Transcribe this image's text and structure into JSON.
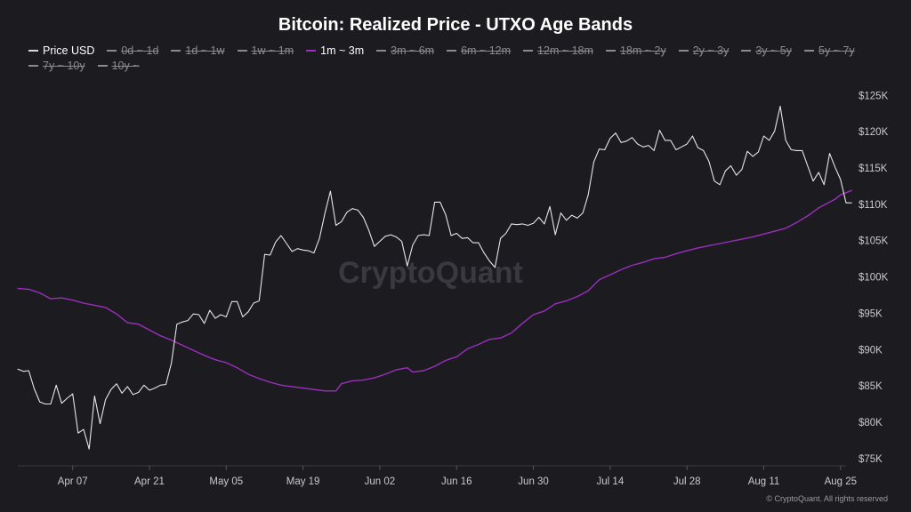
{
  "chart_data": {
    "type": "line",
    "title": "Bitcoin: Realized Price - UTXO Age Bands",
    "watermark": "CryptoQuant",
    "copyright": "© CryptoQuant. All rights reserved",
    "legend": [
      {
        "name": "Price USD",
        "visible": true,
        "color": "#d9d9d9"
      },
      {
        "name": "0d ~ 1d",
        "visible": false,
        "color": "#8a8a8f"
      },
      {
        "name": "1d ~ 1w",
        "visible": false,
        "color": "#8a8a8f"
      },
      {
        "name": "1w ~ 1m",
        "visible": false,
        "color": "#8a8a8f"
      },
      {
        "name": "1m ~ 3m",
        "visible": true,
        "color": "#9b2fbf"
      },
      {
        "name": "3m ~ 6m",
        "visible": false,
        "color": "#8a8a8f"
      },
      {
        "name": "6m ~ 12m",
        "visible": false,
        "color": "#8a8a8f"
      },
      {
        "name": "12m ~ 18m",
        "visible": false,
        "color": "#8a8a8f"
      },
      {
        "name": "18m ~ 2y",
        "visible": false,
        "color": "#8a8a8f"
      },
      {
        "name": "2y ~ 3y",
        "visible": false,
        "color": "#8a8a8f"
      },
      {
        "name": "3y ~ 5y",
        "visible": false,
        "color": "#8a8a8f"
      },
      {
        "name": "5y ~ 7y",
        "visible": false,
        "color": "#8a8a8f"
      },
      {
        "name": "7y ~ 10y",
        "visible": false,
        "color": "#8a8a8f"
      },
      {
        "name": "10y ~",
        "visible": false,
        "color": "#8a8a8f"
      }
    ],
    "x_ticks": [
      {
        "label": "Apr 07",
        "date": "2025-04-07"
      },
      {
        "label": "Apr 21",
        "date": "2025-04-21"
      },
      {
        "label": "May 05",
        "date": "2025-05-05"
      },
      {
        "label": "May 19",
        "date": "2025-05-19"
      },
      {
        "label": "Jun 02",
        "date": "2025-06-02"
      },
      {
        "label": "Jun 16",
        "date": "2025-06-16"
      },
      {
        "label": "Jun 30",
        "date": "2025-06-30"
      },
      {
        "label": "Jul 14",
        "date": "2025-07-14"
      },
      {
        "label": "Jul 28",
        "date": "2025-07-28"
      },
      {
        "label": "Aug 11",
        "date": "2025-08-11"
      },
      {
        "label": "Aug 25",
        "date": "2025-08-25"
      }
    ],
    "y_ticks": [
      {
        "label": "$75K",
        "value": 75000
      },
      {
        "label": "$80K",
        "value": 80000
      },
      {
        "label": "$85K",
        "value": 85000
      },
      {
        "label": "$90K",
        "value": 90000
      },
      {
        "label": "$95K",
        "value": 95000
      },
      {
        "label": "$100K",
        "value": 100000
      },
      {
        "label": "$105K",
        "value": 105000
      },
      {
        "label": "$110K",
        "value": 110000
      },
      {
        "label": "$115K",
        "value": 115000
      },
      {
        "label": "$120K",
        "value": 120000
      },
      {
        "label": "$125K",
        "value": 125000
      }
    ],
    "x_range": [
      "2025-03-28",
      "2025-08-26"
    ],
    "ylim": [
      74000,
      126500
    ],
    "grid": false,
    "legend_position": "top-left",
    "series": [
      {
        "name": "Price USD",
        "color": "#e6e6e6",
        "points": [
          [
            "2025-03-28",
            87300
          ],
          [
            "2025-03-29",
            87000
          ],
          [
            "2025-03-30",
            87100
          ],
          [
            "2025-03-31",
            84600
          ],
          [
            "2025-04-01",
            82800
          ],
          [
            "2025-04-02",
            82500
          ],
          [
            "2025-04-03",
            82500
          ],
          [
            "2025-04-04",
            85100
          ],
          [
            "2025-04-05",
            82600
          ],
          [
            "2025-04-06",
            83300
          ],
          [
            "2025-04-07",
            83900
          ],
          [
            "2025-04-08",
            78500
          ],
          [
            "2025-04-09",
            79000
          ],
          [
            "2025-04-10",
            76300
          ],
          [
            "2025-04-11",
            83600
          ],
          [
            "2025-04-12",
            79800
          ],
          [
            "2025-04-13",
            83100
          ],
          [
            "2025-04-14",
            84500
          ],
          [
            "2025-04-15",
            85300
          ],
          [
            "2025-04-16",
            84000
          ],
          [
            "2025-04-17",
            84900
          ],
          [
            "2025-04-18",
            83800
          ],
          [
            "2025-04-19",
            84100
          ],
          [
            "2025-04-20",
            85100
          ],
          [
            "2025-04-21",
            84400
          ],
          [
            "2025-04-22",
            84700
          ],
          [
            "2025-04-23",
            85100
          ],
          [
            "2025-04-24",
            85200
          ],
          [
            "2025-04-25",
            88100
          ],
          [
            "2025-04-26",
            93500
          ],
          [
            "2025-04-27",
            93800
          ],
          [
            "2025-04-28",
            94000
          ],
          [
            "2025-04-29",
            94900
          ],
          [
            "2025-04-30",
            94800
          ],
          [
            "2025-05-01",
            93600
          ],
          [
            "2025-05-02",
            95400
          ],
          [
            "2025-05-03",
            94300
          ],
          [
            "2025-05-04",
            94800
          ],
          [
            "2025-05-05",
            94500
          ],
          [
            "2025-05-06",
            96600
          ],
          [
            "2025-05-07",
            96600
          ],
          [
            "2025-05-08",
            94500
          ],
          [
            "2025-05-09",
            95200
          ],
          [
            "2025-05-10",
            96400
          ],
          [
            "2025-05-11",
            96700
          ],
          [
            "2025-05-12",
            103100
          ],
          [
            "2025-05-13",
            103000
          ],
          [
            "2025-05-14",
            104800
          ],
          [
            "2025-05-15",
            105700
          ],
          [
            "2025-05-16",
            104600
          ],
          [
            "2025-05-17",
            103500
          ],
          [
            "2025-05-18",
            103900
          ],
          [
            "2025-05-19",
            103700
          ],
          [
            "2025-05-20",
            103600
          ],
          [
            "2025-05-21",
            103300
          ],
          [
            "2025-05-22",
            105300
          ],
          [
            "2025-05-23",
            108800
          ],
          [
            "2025-05-24",
            111800
          ],
          [
            "2025-05-25",
            107100
          ],
          [
            "2025-05-26",
            107600
          ],
          [
            "2025-05-27",
            108900
          ],
          [
            "2025-05-28",
            109400
          ],
          [
            "2025-05-29",
            109200
          ],
          [
            "2025-05-30",
            108200
          ],
          [
            "2025-05-31",
            106400
          ],
          [
            "2025-06-01",
            104200
          ],
          [
            "2025-06-02",
            104900
          ],
          [
            "2025-06-03",
            105600
          ],
          [
            "2025-06-04",
            105800
          ],
          [
            "2025-06-05",
            105500
          ],
          [
            "2025-06-06",
            104900
          ],
          [
            "2025-06-07",
            101500
          ],
          [
            "2025-06-08",
            104400
          ],
          [
            "2025-06-09",
            105700
          ],
          [
            "2025-06-10",
            105800
          ],
          [
            "2025-06-11",
            105700
          ],
          [
            "2025-06-12",
            110300
          ],
          [
            "2025-06-13",
            110300
          ],
          [
            "2025-06-14",
            108600
          ],
          [
            "2025-06-15",
            105700
          ],
          [
            "2025-06-16",
            106000
          ],
          [
            "2025-06-17",
            105300
          ],
          [
            "2025-06-18",
            105400
          ],
          [
            "2025-06-19",
            104700
          ],
          [
            "2025-06-20",
            104700
          ],
          [
            "2025-06-21",
            103300
          ],
          [
            "2025-06-22",
            102200
          ],
          [
            "2025-06-23",
            101300
          ],
          [
            "2025-06-24",
            105300
          ],
          [
            "2025-06-25",
            106000
          ],
          [
            "2025-06-26",
            107300
          ],
          [
            "2025-06-27",
            107200
          ],
          [
            "2025-06-28",
            107300
          ],
          [
            "2025-06-29",
            107100
          ],
          [
            "2025-06-30",
            107400
          ],
          [
            "2025-07-01",
            108200
          ],
          [
            "2025-07-02",
            107300
          ],
          [
            "2025-07-03",
            109700
          ],
          [
            "2025-07-04",
            105800
          ],
          [
            "2025-07-05",
            108800
          ],
          [
            "2025-07-06",
            107800
          ],
          [
            "2025-07-07",
            108500
          ],
          [
            "2025-07-08",
            108100
          ],
          [
            "2025-07-09",
            108800
          ],
          [
            "2025-07-10",
            111300
          ],
          [
            "2025-07-11",
            115800
          ],
          [
            "2025-07-12",
            117600
          ],
          [
            "2025-07-13",
            117500
          ],
          [
            "2025-07-14",
            119100
          ],
          [
            "2025-07-15",
            119800
          ],
          [
            "2025-07-16",
            118500
          ],
          [
            "2025-07-17",
            118700
          ],
          [
            "2025-07-18",
            119200
          ],
          [
            "2025-07-19",
            118300
          ],
          [
            "2025-07-20",
            117900
          ],
          [
            "2025-07-21",
            118100
          ],
          [
            "2025-07-22",
            117400
          ],
          [
            "2025-07-23",
            120200
          ],
          [
            "2025-07-24",
            118800
          ],
          [
            "2025-07-25",
            118800
          ],
          [
            "2025-07-26",
            117500
          ],
          [
            "2025-07-27",
            117900
          ],
          [
            "2025-07-28",
            118300
          ],
          [
            "2025-07-29",
            119400
          ],
          [
            "2025-07-30",
            117800
          ],
          [
            "2025-07-31",
            117400
          ],
          [
            "2025-08-01",
            115900
          ],
          [
            "2025-08-02",
            113200
          ],
          [
            "2025-08-03",
            112700
          ],
          [
            "2025-08-04",
            114600
          ],
          [
            "2025-08-05",
            115300
          ],
          [
            "2025-08-06",
            114000
          ],
          [
            "2025-08-07",
            114800
          ],
          [
            "2025-08-08",
            117300
          ],
          [
            "2025-08-09",
            116600
          ],
          [
            "2025-08-10",
            117200
          ],
          [
            "2025-08-11",
            119400
          ],
          [
            "2025-08-12",
            118800
          ],
          [
            "2025-08-13",
            120100
          ],
          [
            "2025-08-14",
            123500
          ],
          [
            "2025-08-15",
            118800
          ],
          [
            "2025-08-16",
            117500
          ],
          [
            "2025-08-17",
            117400
          ],
          [
            "2025-08-18",
            117400
          ],
          [
            "2025-08-19",
            115300
          ],
          [
            "2025-08-20",
            113200
          ],
          [
            "2025-08-21",
            114400
          ],
          [
            "2025-08-22",
            112700
          ],
          [
            "2025-08-23",
            117000
          ],
          [
            "2025-08-24",
            115100
          ],
          [
            "2025-08-25",
            113400
          ],
          [
            "2025-08-26",
            110200
          ],
          [
            "2025-08-27",
            110200
          ]
        ]
      },
      {
        "name": "1m ~ 3m",
        "color": "#9b2fbf",
        "points": [
          [
            "2025-03-28",
            98400
          ],
          [
            "2025-03-30",
            98300
          ],
          [
            "2025-04-01",
            97800
          ],
          [
            "2025-04-03",
            97000
          ],
          [
            "2025-04-05",
            97100
          ],
          [
            "2025-04-07",
            96800
          ],
          [
            "2025-04-09",
            96400
          ],
          [
            "2025-04-11",
            96100
          ],
          [
            "2025-04-13",
            95800
          ],
          [
            "2025-04-15",
            94900
          ],
          [
            "2025-04-17",
            93700
          ],
          [
            "2025-04-19",
            93500
          ],
          [
            "2025-04-21",
            92700
          ],
          [
            "2025-04-23",
            91900
          ],
          [
            "2025-04-25",
            91300
          ],
          [
            "2025-04-27",
            90600
          ],
          [
            "2025-04-29",
            89900
          ],
          [
            "2025-05-01",
            89200
          ],
          [
            "2025-05-03",
            88600
          ],
          [
            "2025-05-05",
            88200
          ],
          [
            "2025-05-07",
            87500
          ],
          [
            "2025-05-09",
            86600
          ],
          [
            "2025-05-11",
            86000
          ],
          [
            "2025-05-13",
            85500
          ],
          [
            "2025-05-15",
            85100
          ],
          [
            "2025-05-17",
            84900
          ],
          [
            "2025-05-19",
            84700
          ],
          [
            "2025-05-21",
            84500
          ],
          [
            "2025-05-23",
            84300
          ],
          [
            "2025-05-25",
            84300
          ],
          [
            "2025-05-26",
            85300
          ],
          [
            "2025-05-28",
            85700
          ],
          [
            "2025-05-30",
            85800
          ],
          [
            "2025-06-01",
            86100
          ],
          [
            "2025-06-03",
            86600
          ],
          [
            "2025-06-05",
            87200
          ],
          [
            "2025-06-07",
            87500
          ],
          [
            "2025-06-08",
            86900
          ],
          [
            "2025-06-10",
            87100
          ],
          [
            "2025-06-12",
            87700
          ],
          [
            "2025-06-14",
            88500
          ],
          [
            "2025-06-16",
            89000
          ],
          [
            "2025-06-18",
            90100
          ],
          [
            "2025-06-20",
            90700
          ],
          [
            "2025-06-22",
            91400
          ],
          [
            "2025-06-24",
            91600
          ],
          [
            "2025-06-26",
            92300
          ],
          [
            "2025-06-28",
            93600
          ],
          [
            "2025-06-30",
            94800
          ],
          [
            "2025-07-02",
            95300
          ],
          [
            "2025-07-04",
            96300
          ],
          [
            "2025-07-06",
            96700
          ],
          [
            "2025-07-08",
            97300
          ],
          [
            "2025-07-10",
            98100
          ],
          [
            "2025-07-12",
            99600
          ],
          [
            "2025-07-14",
            100300
          ],
          [
            "2025-07-16",
            101000
          ],
          [
            "2025-07-18",
            101600
          ],
          [
            "2025-07-20",
            102000
          ],
          [
            "2025-07-22",
            102500
          ],
          [
            "2025-07-24",
            102700
          ],
          [
            "2025-07-26",
            103200
          ],
          [
            "2025-07-28",
            103600
          ],
          [
            "2025-07-30",
            104000
          ],
          [
            "2025-08-01",
            104300
          ],
          [
            "2025-08-03",
            104600
          ],
          [
            "2025-08-05",
            104900
          ],
          [
            "2025-08-07",
            105200
          ],
          [
            "2025-08-09",
            105500
          ],
          [
            "2025-08-11",
            105900
          ],
          [
            "2025-08-13",
            106300
          ],
          [
            "2025-08-15",
            106700
          ],
          [
            "2025-08-17",
            107500
          ],
          [
            "2025-08-19",
            108400
          ],
          [
            "2025-08-21",
            109500
          ],
          [
            "2025-08-23",
            110300
          ],
          [
            "2025-08-24",
            110700
          ],
          [
            "2025-08-25",
            111300
          ],
          [
            "2025-08-27",
            111900
          ]
        ]
      }
    ]
  }
}
